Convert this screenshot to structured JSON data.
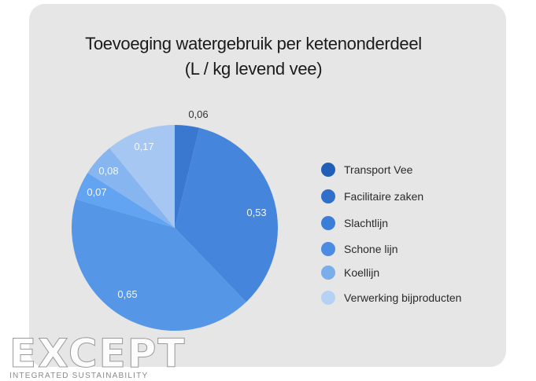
{
  "chart_data": {
    "type": "pie",
    "title_lines": [
      "Toevoeging watergebruik per ketenonderdeel",
      "(L / kg levend vee)"
    ],
    "legend_position": "right",
    "slices": [
      {
        "name": "Transport Vee",
        "value": 0.06,
        "label": "0,06",
        "color": "#3a78cf"
      },
      {
        "name": "Facilitaire zaken",
        "value": 0.53,
        "label": "0,53",
        "color": "#4585dc"
      },
      {
        "name": "Slachtlijn",
        "value": 0.65,
        "label": "0,65",
        "color": "#5596e6"
      },
      {
        "name": "Schone lijn",
        "value": 0.07,
        "label": "0,07",
        "color": "#62a4f2"
      },
      {
        "name": "Koellijn",
        "value": 0.08,
        "label": "0,08",
        "color": "#86b5ef"
      },
      {
        "name": "Verwerking bijproducten",
        "value": 0.17,
        "label": "0,17",
        "color": "#a5c7f2"
      }
    ],
    "legend_colors": [
      "#1f5fb8",
      "#2f6fca",
      "#3b7ed8",
      "#4b8be2",
      "#7aaeea",
      "#b5d2f5"
    ]
  },
  "watermark": {
    "word": "EXCEPT",
    "subtitle": "INTEGRATED SUSTAINABILITY"
  }
}
